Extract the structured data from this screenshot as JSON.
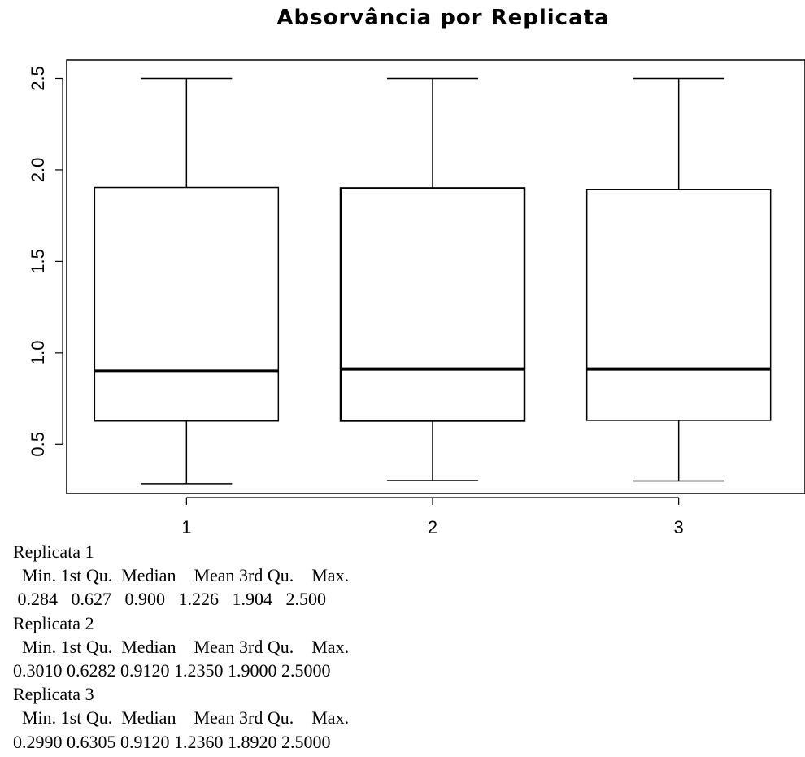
{
  "chart_data": {
    "type": "box",
    "title": "Absorvância por Replicata",
    "xlabel": "",
    "ylabel": "",
    "categories": [
      "1",
      "2",
      "3"
    ],
    "y_ticks": [
      "0.5",
      "1.0",
      "1.5",
      "2.0",
      "2.5"
    ],
    "ylim": [
      0.23,
      2.6
    ],
    "boxes": [
      {
        "label": "1",
        "min": 0.284,
        "q1": 0.627,
        "median": 0.9,
        "q3": 1.904,
        "max": 2.5
      },
      {
        "label": "2",
        "min": 0.301,
        "q1": 0.6282,
        "median": 0.912,
        "q3": 1.9,
        "max": 2.5
      },
      {
        "label": "3",
        "min": 0.299,
        "q1": 0.6305,
        "median": 0.912,
        "q3": 1.892,
        "max": 2.5
      }
    ]
  },
  "summary": [
    {
      "name": "Replicata 1",
      "header": "  Min. 1st Qu.  Median    Mean 3rd Qu.    Max.",
      "values": " 0.284   0.627   0.900   1.226   1.904   2.500"
    },
    {
      "name": "Replicata 2",
      "header": "  Min. 1st Qu.  Median    Mean 3rd Qu.    Max.",
      "values": "0.3010 0.6282 0.9120 1.2350 1.9000 2.5000"
    },
    {
      "name": "Replicata 3",
      "header": "  Min. 1st Qu.  Median    Mean 3rd Qu.    Max.",
      "values": "0.2990 0.6305 0.9120 1.2360 1.8920 2.5000"
    }
  ]
}
